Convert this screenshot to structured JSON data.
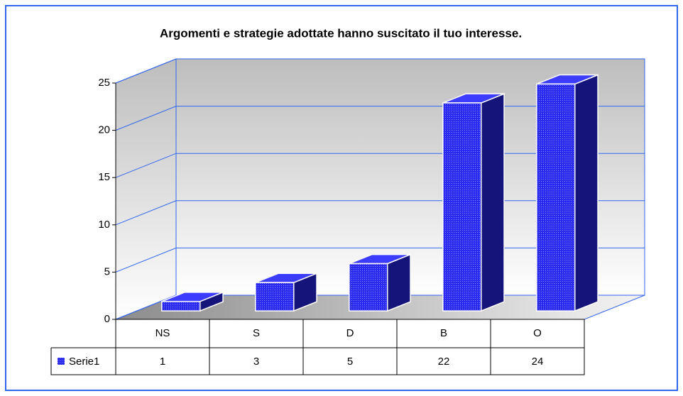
{
  "chart_data": {
    "type": "bar3d",
    "title": "Argomenti e strategie adottate hanno suscitato il tuo interesse.",
    "categories": [
      "NS",
      "S",
      "D",
      "B",
      "O"
    ],
    "series": [
      {
        "name": "Serie1",
        "color": "#2b2bef",
        "values": [
          1,
          3,
          5,
          22,
          24
        ]
      }
    ],
    "ylim": [
      0,
      25
    ],
    "yticks": [
      0,
      5,
      10,
      15,
      20,
      25
    ],
    "grid": true
  }
}
